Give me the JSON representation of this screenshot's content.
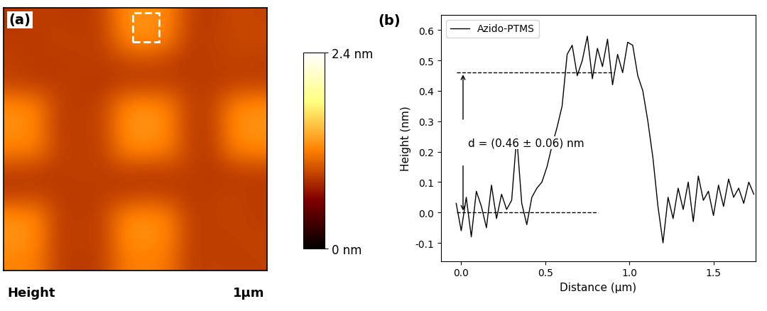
{
  "chart_data": [
    {
      "type": "heatmap",
      "title": "(a)",
      "xlabel": "Height",
      "scale_label": "1μm",
      "tick_labels": false,
      "cells": [
        [
          0.85,
          0.9,
          0.88,
          0.86,
          0.92,
          1.25,
          1.3,
          1.22,
          0.9,
          0.87,
          0.95,
          0.92
        ],
        [
          0.88,
          0.86,
          0.92,
          0.89,
          0.9,
          1.2,
          1.28,
          1.18,
          0.88,
          0.9,
          0.93,
          0.95
        ],
        [
          0.9,
          0.87,
          0.85,
          0.9,
          0.88,
          0.92,
          0.95,
          0.9,
          0.86,
          0.89,
          0.91,
          0.88
        ],
        [
          0.92,
          0.89,
          0.9,
          0.87,
          0.86,
          0.9,
          0.88,
          0.91,
          0.89,
          0.88,
          0.9,
          0.92
        ],
        [
          1.25,
          1.2,
          0.9,
          0.88,
          0.92,
          1.22,
          1.28,
          1.2,
          0.9,
          0.91,
          1.22,
          1.26
        ],
        [
          1.28,
          1.22,
          0.88,
          0.9,
          0.91,
          1.26,
          1.3,
          1.24,
          0.88,
          0.9,
          1.25,
          1.3
        ],
        [
          1.2,
          1.18,
          0.91,
          0.89,
          0.9,
          1.2,
          1.24,
          1.18,
          0.91,
          0.88,
          1.2,
          1.22
        ],
        [
          0.9,
          0.88,
          0.87,
          0.92,
          0.88,
          0.9,
          0.87,
          0.89,
          0.9,
          0.86,
          0.88,
          0.9
        ],
        [
          0.88,
          0.91,
          0.89,
          0.86,
          0.9,
          0.88,
          0.92,
          0.9,
          0.87,
          0.89,
          0.91,
          0.87
        ],
        [
          1.26,
          1.22,
          0.9,
          0.88,
          0.91,
          1.22,
          1.25,
          1.2,
          0.89,
          0.9,
          0.92,
          0.88
        ],
        [
          1.3,
          1.25,
          0.88,
          0.91,
          0.89,
          1.25,
          1.28,
          1.22,
          0.9,
          0.88,
          0.9,
          0.91
        ],
        [
          1.22,
          1.18,
          0.9,
          0.87,
          0.9,
          1.18,
          1.2,
          1.16,
          0.88,
          0.91,
          0.89,
          0.9
        ]
      ],
      "color_range": [
        0,
        2.4
      ],
      "color_ticks": [
        {
          "value": 0,
          "label": "0 nm"
        },
        {
          "value": 2.4,
          "label": "2.4 nm"
        }
      ]
    },
    {
      "type": "line",
      "title": "(b)",
      "xlabel": "Distance (μm)",
      "ylabel": "Height (nm)",
      "legend": "upper left",
      "x": [
        -0.03,
        0.0,
        0.03,
        0.06,
        0.09,
        0.12,
        0.15,
        0.18,
        0.21,
        0.24,
        0.27,
        0.3,
        0.33,
        0.36,
        0.39,
        0.42,
        0.45,
        0.48,
        0.51,
        0.54,
        0.57,
        0.6,
        0.63,
        0.66,
        0.69,
        0.72,
        0.75,
        0.78,
        0.81,
        0.84,
        0.87,
        0.9,
        0.93,
        0.96,
        0.99,
        1.02,
        1.05,
        1.08,
        1.11,
        1.14,
        1.17,
        1.2,
        1.23,
        1.26,
        1.29,
        1.32,
        1.35,
        1.38,
        1.41,
        1.44,
        1.47,
        1.5,
        1.53,
        1.56,
        1.59,
        1.62,
        1.65,
        1.68,
        1.71,
        1.74
      ],
      "series": [
        {
          "name": "Azido-PTMS",
          "color": "#000000",
          "values": [
            0.03,
            -0.06,
            0.05,
            -0.08,
            0.07,
            0.02,
            -0.05,
            0.09,
            -0.02,
            0.06,
            0.01,
            0.04,
            0.25,
            0.03,
            -0.04,
            0.05,
            0.08,
            0.1,
            0.15,
            0.22,
            0.28,
            0.35,
            0.52,
            0.55,
            0.45,
            0.5,
            0.58,
            0.44,
            0.54,
            0.48,
            0.57,
            0.42,
            0.52,
            0.46,
            0.56,
            0.55,
            0.45,
            0.4,
            0.3,
            0.18,
            0.02,
            -0.1,
            0.05,
            -0.02,
            0.08,
            0.01,
            0.1,
            -0.03,
            0.12,
            0.04,
            0.07,
            -0.01,
            0.09,
            0.02,
            0.11,
            0.05,
            0.08,
            0.03,
            0.1,
            0.06
          ]
        }
      ],
      "xlim": [
        -0.12,
        1.75
      ],
      "xticks": [
        {
          "value": 0,
          "label": "0.0"
        },
        0.5,
        {
          "value": 1,
          "label": "1.0"
        },
        1.5
      ],
      "ylim": [
        -0.16,
        0.65
      ],
      "yticks": [
        {
          "value": -0.1,
          "label": "-0.1"
        },
        {
          "value": 0,
          "label": "0.0"
        },
        0.1,
        0.2,
        0.3,
        0.4,
        0.5,
        0.6
      ],
      "annotations": [
        {
          "text": "d = (0.46 ± 0.06) nm",
          "levels": [
            0.0,
            0.46
          ]
        }
      ]
    }
  ]
}
